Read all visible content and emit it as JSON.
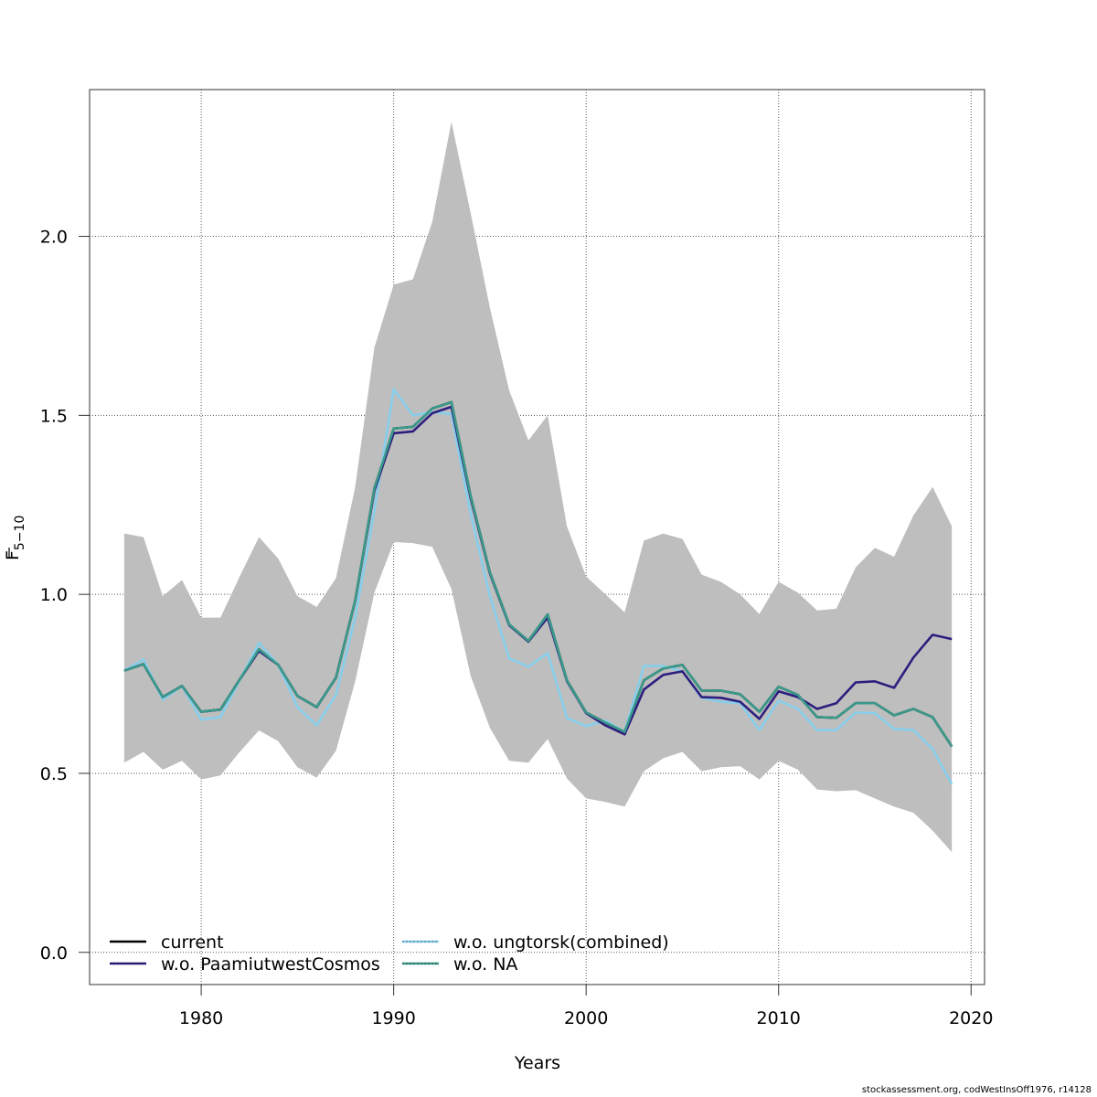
{
  "chart_data": {
    "type": "line",
    "title": "",
    "xlabel": "Years",
    "ylabel_main": "F",
    "ylabel_sub": "5−10",
    "xlim": [
      1974.2,
      2020.7
    ],
    "ylim": [
      -0.09,
      2.41
    ],
    "grid": true,
    "x_ticks": [
      1980,
      1990,
      2000,
      2010,
      2020
    ],
    "x_tick_labels": [
      "1980",
      "1990",
      "2000",
      "2010",
      "2020"
    ],
    "y_ticks": [
      0.0,
      0.5,
      1.0,
      1.5,
      2.0
    ],
    "y_tick_labels": [
      "0.0",
      "0.5",
      "1.0",
      "1.5",
      "2.0"
    ],
    "legend_position": "bottom-left",
    "x": [
      1976,
      1977,
      1978,
      1979,
      1980,
      1981,
      1982,
      1983,
      1984,
      1985,
      1986,
      1987,
      1988,
      1989,
      1990,
      1991,
      1992,
      1993,
      1994,
      1995,
      1996,
      1997,
      1998,
      1999,
      2000,
      2001,
      2002,
      2003,
      2004,
      2005,
      2006,
      2007,
      2008,
      2009,
      2010,
      2011,
      2012,
      2013,
      2014,
      2015,
      2016,
      2017,
      2018,
      2019
    ],
    "confidence_band": {
      "name": "current 95% CI",
      "color": "#bebebe",
      "upper": [
        1.17,
        1.16,
        0.995,
        1.04,
        0.935,
        0.935,
        1.05,
        1.16,
        1.1,
        0.995,
        0.965,
        1.045,
        1.3,
        1.69,
        1.865,
        1.88,
        2.04,
        2.32,
        2.065,
        1.8,
        1.57,
        1.43,
        1.5,
        1.19,
        1.05,
        1.0,
        0.95,
        1.15,
        1.17,
        1.155,
        1.055,
        1.035,
        1.0,
        0.945,
        1.035,
        1.005,
        0.955,
        0.96,
        1.075,
        1.13,
        1.105,
        1.22,
        1.3,
        1.19
      ],
      "lower": [
        0.53,
        0.56,
        0.51,
        0.535,
        0.483,
        0.494,
        0.56,
        0.62,
        0.59,
        0.517,
        0.488,
        0.563,
        0.757,
        1.005,
        1.146,
        1.143,
        1.133,
        1.015,
        0.772,
        0.627,
        0.535,
        0.53,
        0.596,
        0.486,
        0.43,
        0.42,
        0.407,
        0.506,
        0.542,
        0.56,
        0.506,
        0.517,
        0.52,
        0.483,
        0.535,
        0.51,
        0.455,
        0.45,
        0.453,
        0.43,
        0.407,
        0.39,
        0.34,
        0.28
      ]
    },
    "series": [
      {
        "name": "current",
        "color": "#000000",
        "dashed_legend": false,
        "values": [
          0.787,
          0.805,
          0.713,
          0.744,
          0.672,
          0.678,
          0.762,
          0.847,
          0.803,
          0.716,
          0.685,
          0.767,
          0.982,
          1.297,
          1.463,
          1.468,
          1.519,
          1.537,
          1.274,
          1.061,
          0.916,
          0.87,
          0.944,
          0.76,
          0.67,
          0.642,
          0.616,
          0.76,
          0.793,
          0.803,
          0.731,
          0.731,
          0.721,
          0.672,
          0.742,
          0.719,
          0.657,
          0.655,
          0.696,
          0.696,
          0.662,
          0.68,
          0.657,
          0.575
        ]
      },
      {
        "name": "w.o. PaamiutwestCosmos",
        "color": "#2d1e7e",
        "dashed_legend": true,
        "values": [
          0.787,
          0.805,
          0.713,
          0.744,
          0.672,
          0.678,
          0.762,
          0.842,
          0.803,
          0.716,
          0.685,
          0.767,
          0.982,
          1.29,
          1.45,
          1.455,
          1.506,
          1.524,
          1.268,
          1.058,
          0.914,
          0.868,
          0.935,
          0.758,
          0.668,
          0.634,
          0.609,
          0.734,
          0.775,
          0.785,
          0.713,
          0.711,
          0.7,
          0.652,
          0.729,
          0.713,
          0.68,
          0.696,
          0.754,
          0.757,
          0.739,
          0.823,
          0.887,
          0.875
        ]
      },
      {
        "name": "w.o. ungtorsk(combined)",
        "color": "#87ceeb",
        "dashed_legend": true,
        "values": [
          0.787,
          0.818,
          0.706,
          0.744,
          0.65,
          0.657,
          0.76,
          0.864,
          0.803,
          0.685,
          0.634,
          0.719,
          0.936,
          1.235,
          1.573,
          1.5,
          1.509,
          1.504,
          1.225,
          0.995,
          0.821,
          0.798,
          0.836,
          0.655,
          0.632,
          0.647,
          0.616,
          0.8,
          0.8,
          0.785,
          0.711,
          0.7,
          0.696,
          0.621,
          0.703,
          0.68,
          0.621,
          0.621,
          0.67,
          0.668,
          0.624,
          0.621,
          0.568,
          0.47
        ]
      },
      {
        "name": "w.o. NA",
        "color": "#3a9a8a",
        "dashed_legend": true,
        "values": [
          0.787,
          0.805,
          0.713,
          0.744,
          0.672,
          0.678,
          0.762,
          0.847,
          0.803,
          0.716,
          0.685,
          0.767,
          0.982,
          1.297,
          1.463,
          1.468,
          1.519,
          1.537,
          1.274,
          1.061,
          0.916,
          0.87,
          0.944,
          0.76,
          0.67,
          0.642,
          0.616,
          0.76,
          0.793,
          0.803,
          0.731,
          0.731,
          0.721,
          0.672,
          0.742,
          0.719,
          0.657,
          0.655,
          0.696,
          0.696,
          0.662,
          0.68,
          0.657,
          0.575
        ]
      }
    ],
    "legend": [
      {
        "label": "current",
        "series_index": 0
      },
      {
        "label": "w.o. PaamiutwestCosmos",
        "series_index": 1
      },
      {
        "label": "w.o. ungtorsk(combined)",
        "series_index": 2
      },
      {
        "label": "w.o. NA",
        "series_index": 3
      }
    ]
  },
  "footer": "stockassessment.org, codWestInsOff1976, r14128"
}
